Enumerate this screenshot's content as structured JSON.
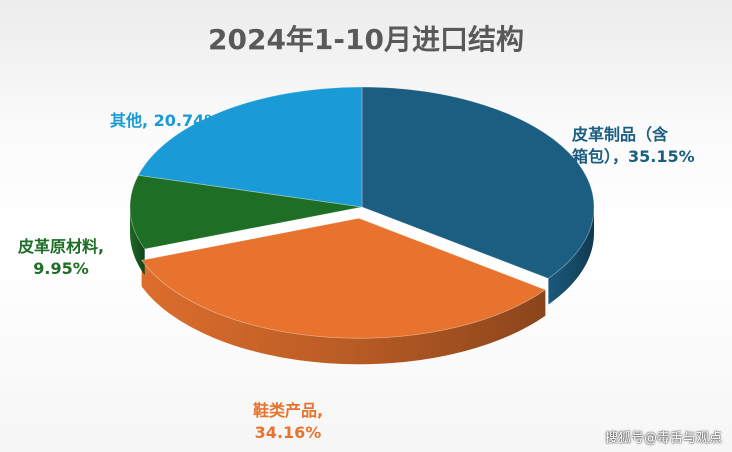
{
  "chart_data": {
    "type": "pie",
    "title": "2024年1-10月进口结构",
    "slices": [
      {
        "name": "皮革制品（含箱包）",
        "value": 35.15,
        "color": "#1b5e82",
        "label_lines": [
          "皮革制品（含",
          "箱包），35.15%"
        ]
      },
      {
        "name": "鞋类产品",
        "value": 34.16,
        "color": "#e8732e",
        "label_lines": [
          "鞋类产品,",
          "34.16%"
        ]
      },
      {
        "name": "皮革原材料",
        "value": 9.95,
        "color": "#1e6e26",
        "label_lines": [
          "皮革原材料,",
          "9.95%"
        ]
      },
      {
        "name": "其他",
        "value": 20.74,
        "color": "#1a9ad6",
        "label_lines": [
          "其他, 20.74%"
        ]
      }
    ]
  },
  "watermark": "搜狐号@毒舌与观点"
}
